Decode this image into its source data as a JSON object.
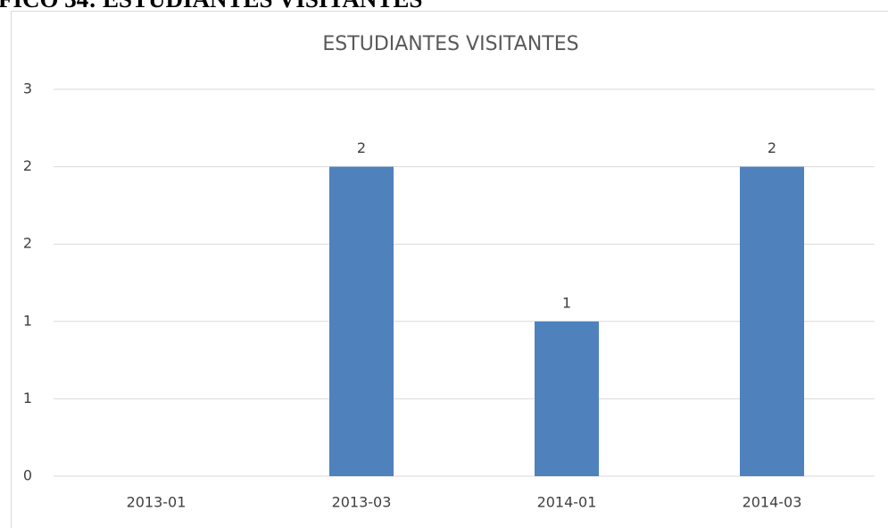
{
  "heading": "FICO 34: ESTUDIANTES VISITANTES",
  "chart_data": {
    "type": "bar",
    "title": "ESTUDIANTES VISITANTES",
    "categories": [
      "2013-01",
      "2013-03",
      "2014-01",
      "2014-03"
    ],
    "values": [
      null,
      2,
      1,
      2
    ],
    "color": "#4f81bd",
    "ylim": [
      0,
      2.5
    ],
    "yticks": [
      0,
      {
        "value": 0.5,
        "label": "1"
      },
      1,
      {
        "value": 1.5,
        "label": "2"
      },
      2,
      {
        "value": 2.5,
        "label": "3"
      }
    ],
    "grid": true
  }
}
